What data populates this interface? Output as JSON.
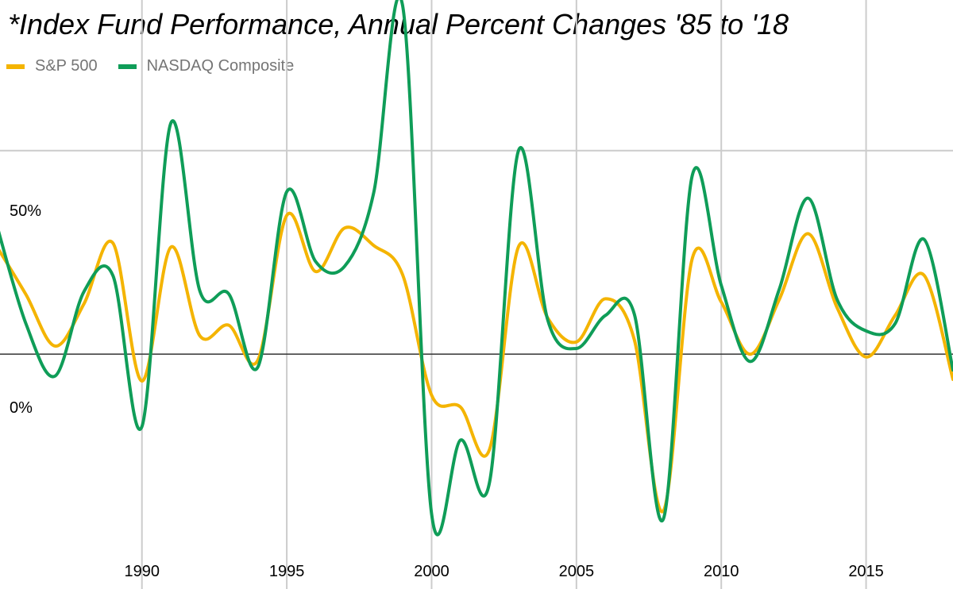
{
  "chart_data": {
    "type": "line",
    "title": "*Index Fund Performance, Annual Percent Changes '85 to '18",
    "xlabel": "",
    "ylabel": "",
    "x": [
      1985,
      1986,
      1987,
      1988,
      1989,
      1990,
      1991,
      1992,
      1993,
      1994,
      1995,
      1996,
      1997,
      1998,
      1999,
      2000,
      2001,
      2002,
      2003,
      2004,
      2005,
      2006,
      2007,
      2008,
      2009,
      2010,
      2011,
      2012,
      2013,
      2014,
      2015,
      2016,
      2017,
      2018
    ],
    "x_ticks": [
      "1990",
      "1995",
      "2000",
      "2005",
      "2010",
      "2015"
    ],
    "y_ticks": [
      "0%",
      "50%"
    ],
    "xlim": [
      1985.1,
      2018
    ],
    "ylim": [
      -49.5,
      87
    ],
    "legend_position": "top-left",
    "series": [
      {
        "name": "S&P 500",
        "color": "#f4b400",
        "values": [
          26.3,
          14.6,
          2.0,
          12.4,
          27.3,
          -6.6,
          26.3,
          4.5,
          7.1,
          -1.5,
          34.1,
          20.3,
          31.0,
          26.7,
          19.5,
          -10.1,
          -13.0,
          -23.4,
          26.4,
          9.0,
          3.0,
          13.6,
          3.5,
          -38.5,
          23.5,
          12.8,
          0.0,
          13.4,
          29.6,
          11.4,
          -0.7,
          9.5,
          19.4,
          -6.2
        ]
      },
      {
        "name": "NASDAQ Composite",
        "color": "#0f9d58",
        "values": [
          31.4,
          7.4,
          -5.4,
          15.4,
          19.3,
          -17.8,
          56.8,
          15.5,
          14.8,
          -3.2,
          39.9,
          22.7,
          21.6,
          39.6,
          85.6,
          -39.3,
          -21.1,
          -31.5,
          50.0,
          8.6,
          1.4,
          9.5,
          9.8,
          -40.5,
          43.9,
          16.9,
          -1.8,
          15.9,
          38.3,
          13.4,
          5.7,
          7.5,
          28.2,
          -3.9
        ]
      }
    ],
    "gridlines": true
  }
}
